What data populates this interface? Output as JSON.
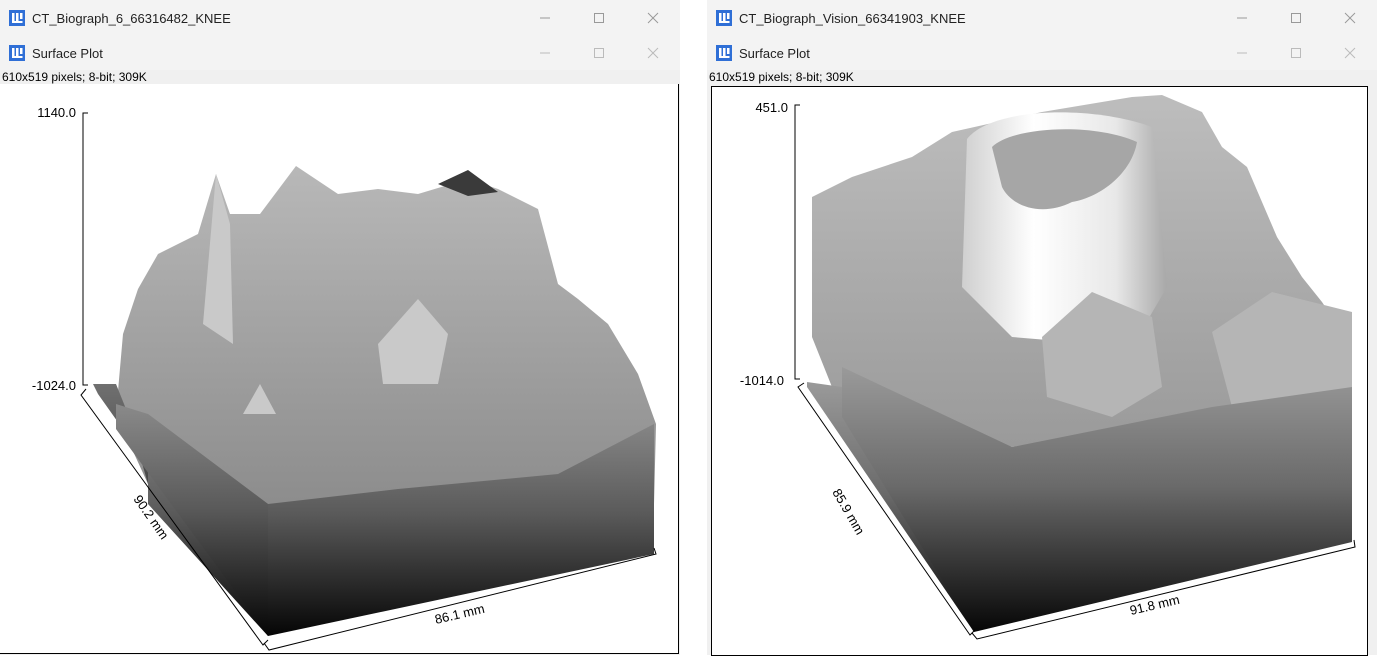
{
  "windows": [
    {
      "title": "CT_Biograph_6_66316482_KNEE",
      "subtitle": "Surface Plot",
      "info": "610x519 pixels; 8-bit; 309K",
      "plot": {
        "z_max": "1140.0",
        "z_min": "-1024.0",
        "y_axis": "90.2 mm",
        "x_axis": "86.1 mm"
      }
    },
    {
      "title": "CT_Biograph_Vision_66341903_KNEE",
      "subtitle": "Surface Plot",
      "info": "610x519 pixels; 8-bit; 309K",
      "plot": {
        "z_max": "451.0",
        "z_min": "-1014.0",
        "y_axis": "85.9 mm",
        "x_axis": "91.8 mm"
      }
    }
  ],
  "icons": {
    "app": "imagej-icon",
    "minimize": "minimize-icon",
    "maximize": "maximize-icon",
    "close": "close-icon"
  },
  "colors": {
    "app_icon": "#2f6fd6",
    "titlebar": "#f3f3f3"
  }
}
